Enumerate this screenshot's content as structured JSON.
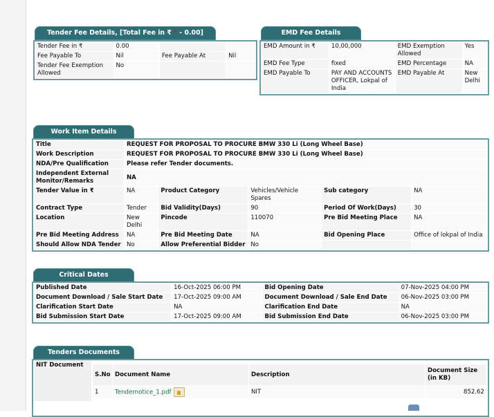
{
  "tender_fee": {
    "title_prefix": "Tender Fee Details, [Total Fee in ₹ ",
    "title_star": "*",
    "title_suffix": " - 0.00]",
    "rows": [
      [
        "Tender Fee in ₹",
        "0.00",
        "",
        ""
      ],
      [
        "Fee Payable To",
        "Nil",
        "Fee Payable At",
        "Nil"
      ],
      [
        "Tender Fee Exemption Allowed",
        "No",
        "",
        ""
      ]
    ]
  },
  "emd_fee": {
    "title": "EMD Fee Details",
    "rows": [
      [
        "EMD Amount in ₹",
        "10,00,000",
        "EMD Exemption Allowed",
        "Yes"
      ],
      [
        "EMD Fee Type",
        "fixed",
        "EMD Percentage",
        "NA"
      ],
      [
        "EMD Payable To",
        "PAY AND ACCOUNTS OFFICER, Lokpal of India",
        "EMD Payable At",
        "New Delhi"
      ]
    ]
  },
  "work_item": {
    "title": "Work Item Details",
    "rows": [
      [
        "Title",
        "REQUEST FOR PROPOSAL TO PROCURE BMW 330 Li (Long Wheel Base)"
      ],
      [
        "Work Description",
        "REQUEST FOR PROPOSAL TO PROCURE BMW 330 Li (Long Wheel Base)"
      ],
      [
        "NDA/Pre Qualification",
        "Please refer Tender documents."
      ],
      [
        "Independent External Monitor/Remarks",
        "NA"
      ],
      [
        "Tender Value in ₹",
        "NA",
        "Product Category",
        "Vehicles/Vehicle Spares",
        "Sub category",
        "NA"
      ],
      [
        "Contract Type",
        "Tender",
        "Bid Validity(Days)",
        "90",
        "Period Of Work(Days)",
        "30"
      ],
      [
        "Location",
        "New Delhi",
        "Pincode",
        "110070",
        "Pre Bid Meeting Place",
        "NA"
      ],
      [
        "Pre Bid Meeting Address",
        "NA",
        "Pre Bid Meeting Date",
        "NA",
        "Bid Opening Place",
        "Office of lokpal of India"
      ],
      [
        "Should Allow NDA Tender",
        "No",
        "Allow Preferential Bidder",
        "No",
        "",
        ""
      ]
    ]
  },
  "critical_dates": {
    "title": "Critical Dates",
    "rows": [
      [
        "Published Date",
        "16-Oct-2025 06:00 PM",
        "Bid Opening Date",
        "07-Nov-2025 04:00 PM"
      ],
      [
        "Document Download / Sale Start Date",
        "17-Oct-2025 09:00 AM",
        "Document Download / Sale End Date",
        "06-Nov-2025 03:00 PM"
      ],
      [
        "Clarification Start Date",
        "NA",
        "Clarification End Date",
        "NA"
      ],
      [
        "Bid Submission Start Date",
        "17-Oct-2025 09:00 AM",
        "Bid Submission End Date",
        "06-Nov-2025 03:00 PM"
      ]
    ]
  },
  "documents": {
    "title": "Tenders Documents",
    "nit_label": "NIT Document",
    "headers": [
      "S.No",
      "Document Name",
      "Description",
      "Document Size (in KB)"
    ],
    "rows": [
      {
        "sno": "1",
        "name": "Tendernotice_1.pdf",
        "description": "NIT",
        "size": "852.62"
      }
    ]
  }
}
